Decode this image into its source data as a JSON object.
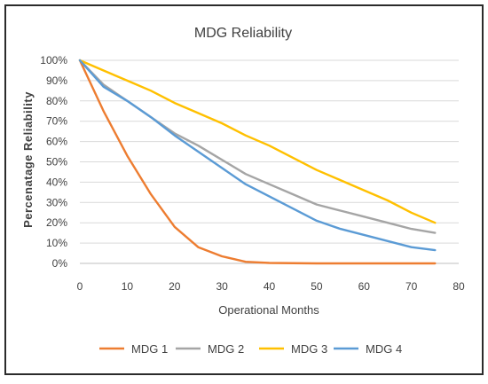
{
  "chart_data": {
    "type": "line",
    "title": "MDG Reliability",
    "xlabel": "Operational Months",
    "ylabel": "Percenatage Reliability",
    "xlim": [
      0,
      80
    ],
    "ylim": [
      0,
      100
    ],
    "x_ticks": [
      0,
      10,
      20,
      30,
      40,
      50,
      60,
      70,
      80
    ],
    "y_ticks": [
      0,
      10,
      20,
      30,
      40,
      50,
      60,
      70,
      80,
      90,
      100
    ],
    "y_tick_suffix": "%",
    "grid": "horizontal",
    "legend_position": "bottom",
    "series": [
      {
        "name": "MDG 1",
        "color": "#ED7D31",
        "points": [
          [
            0,
            100
          ],
          [
            5,
            75
          ],
          [
            10,
            53
          ],
          [
            15,
            34
          ],
          [
            20,
            18
          ],
          [
            25,
            8
          ],
          [
            30,
            3.5
          ],
          [
            35,
            0.8
          ],
          [
            40,
            0.2
          ],
          [
            50,
            0
          ],
          [
            60,
            0
          ],
          [
            75,
            0
          ]
        ]
      },
      {
        "name": "MDG 2",
        "color": "#A5A5A5",
        "points": [
          [
            0,
            100
          ],
          [
            5,
            88
          ],
          [
            10,
            80
          ],
          [
            15,
            72
          ],
          [
            20,
            64
          ],
          [
            25,
            58
          ],
          [
            30,
            51
          ],
          [
            35,
            44
          ],
          [
            40,
            39
          ],
          [
            45,
            34
          ],
          [
            50,
            29
          ],
          [
            55,
            26
          ],
          [
            60,
            23
          ],
          [
            65,
            20
          ],
          [
            70,
            17
          ],
          [
            75,
            15
          ]
        ]
      },
      {
        "name": "MDG 3",
        "color": "#FFC000",
        "points": [
          [
            0,
            100
          ],
          [
            5,
            95
          ],
          [
            10,
            90
          ],
          [
            15,
            85
          ],
          [
            20,
            79
          ],
          [
            25,
            74
          ],
          [
            30,
            69
          ],
          [
            35,
            63
          ],
          [
            40,
            58
          ],
          [
            45,
            52
          ],
          [
            50,
            46
          ],
          [
            55,
            41
          ],
          [
            60,
            36
          ],
          [
            65,
            31
          ],
          [
            70,
            25
          ],
          [
            75,
            20
          ]
        ]
      },
      {
        "name": "MDG 4",
        "color": "#5B9BD5",
        "points": [
          [
            0,
            100
          ],
          [
            5,
            87
          ],
          [
            10,
            80
          ],
          [
            15,
            72
          ],
          [
            20,
            63
          ],
          [
            25,
            55
          ],
          [
            30,
            47
          ],
          [
            35,
            39
          ],
          [
            40,
            33
          ],
          [
            45,
            27
          ],
          [
            50,
            21
          ],
          [
            55,
            17
          ],
          [
            60,
            14
          ],
          [
            65,
            11
          ],
          [
            70,
            8
          ],
          [
            75,
            6.5
          ]
        ]
      }
    ]
  }
}
